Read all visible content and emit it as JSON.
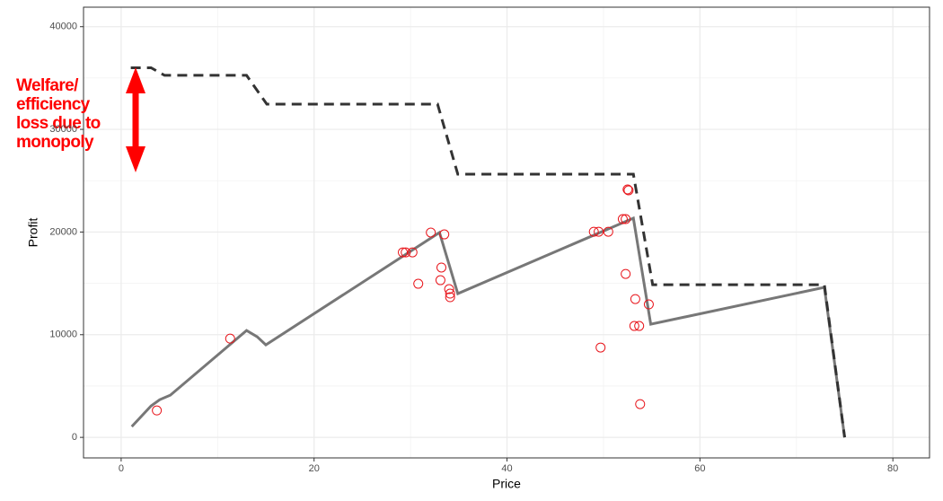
{
  "chart_data": {
    "type": "line",
    "x_label": "Price",
    "y_label": "Profit",
    "xlim": [
      -3.9,
      83.8
    ],
    "ylim": [
      -2000,
      41900
    ],
    "xticks": [
      0,
      20,
      40,
      60,
      80
    ],
    "yticks": [
      0,
      10000,
      20000,
      30000,
      40000
    ],
    "grid": true,
    "series": [
      {
        "kind": "dashed-line",
        "color": "#333333",
        "x": [
          1,
          3.1,
          4.5,
          13,
          15.1,
          32.8,
          34.9,
          53.1,
          55.1,
          72.9,
          75
        ],
        "values": [
          36000,
          36000,
          35260,
          35260,
          32460,
          32460,
          25630,
          25630,
          14870,
          14870,
          0
        ]
      },
      {
        "kind": "solid-line",
        "color": "#777777",
        "x": [
          1.1,
          3.1,
          4,
          5.1,
          13,
          14.1,
          15,
          33,
          34.9,
          53.1,
          54.9,
          72.9,
          75
        ],
        "values": [
          1050,
          3060,
          3670,
          4110,
          10410,
          9800,
          9010,
          19950,
          14000,
          21350,
          11020,
          14610,
          0
        ]
      },
      {
        "kind": "points",
        "color": "#e8151b",
        "x": [
          3.7,
          11.3,
          29.2,
          29.5,
          30.2,
          32.1,
          33.5,
          33.2,
          33.1,
          30.8,
          34.0,
          34.1,
          34.1,
          49,
          49.5,
          50.5,
          52.0,
          52.3,
          52.5,
          52.6,
          52.3,
          53.3,
          54.7,
          53.2,
          53.7,
          49.7,
          53.8
        ],
        "values": [
          2620,
          9620,
          18020,
          18020,
          18020,
          19950,
          19770,
          16540,
          15310,
          14960,
          14440,
          14000,
          13650,
          20030,
          20030,
          20030,
          21260,
          21260,
          24150,
          24060,
          15920,
          13470,
          12950,
          10850,
          10850,
          8750,
          3240
        ]
      }
    ],
    "annotation": [
      "Welfare/",
      "efficiency",
      "loss due to",
      "monopoly"
    ]
  }
}
